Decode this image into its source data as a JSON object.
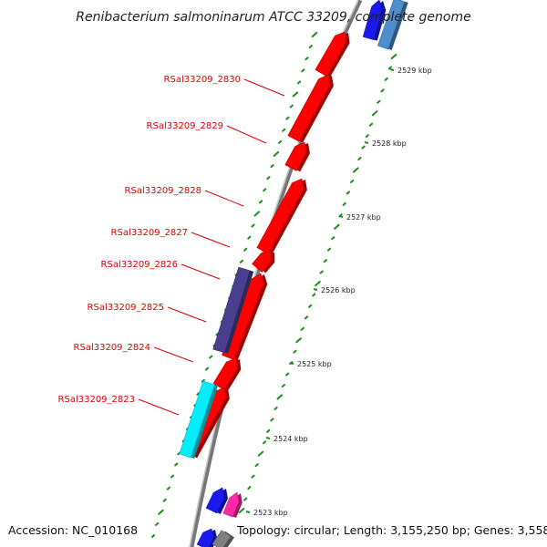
{
  "title": "Renibacterium salmoninarum ATCC 33209, complete genome",
  "footer": {
    "accession": "Accession: NC_010168",
    "topology": "Topology: circular; Length: 3,155,250 bp; Genes: 3,558"
  },
  "colors": {
    "cds_red": "#ff0000",
    "gene_purple": "#4a3f8f",
    "gene_cyan": "#00eeff",
    "gene_blue": "#1a1aee",
    "gene_steel": "#4d8ecc",
    "gene_magenta": "#ff2aa5",
    "gene_grey": "#808080",
    "gc_green": "#1a8f1a",
    "backbone": "#888888",
    "label_red": "#e00000"
  },
  "kbp_ticks": [
    {
      "kbp": 2529,
      "label": "2529 kbp"
    },
    {
      "kbp": 2528,
      "label": "2528 kbp"
    },
    {
      "kbp": 2527,
      "label": "2527 kbp"
    },
    {
      "kbp": 2526,
      "label": "2526 kbp"
    },
    {
      "kbp": 2525,
      "label": "2525 kbp"
    },
    {
      "kbp": 2524,
      "label": "2524 kbp"
    },
    {
      "kbp": 2523,
      "label": "2523 kbp"
    }
  ],
  "gene_labels": [
    {
      "name": "RSal33209_2830"
    },
    {
      "name": "RSal33209_2829"
    },
    {
      "name": "RSal33209_2828"
    },
    {
      "name": "RSal33209_2827"
    },
    {
      "name": "RSal33209_2826"
    },
    {
      "name": "RSal33209_2825"
    },
    {
      "name": "RSal33209_2824"
    },
    {
      "name": "RSal33209_2823"
    }
  ]
}
